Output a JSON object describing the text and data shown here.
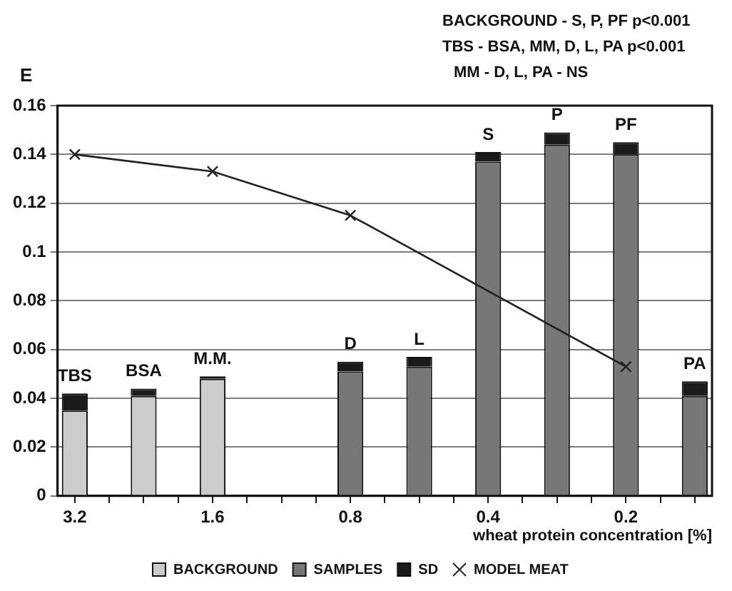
{
  "chart_data": {
    "type": "bar",
    "stacked": true,
    "ylabel": "E",
    "xlabel": "wheat protein concentration [%]",
    "annotations": [
      "BACKGROUND - S, P, PF  p<0.001",
      "TBS - BSA, MM, D, L, PA  p<0.001",
      "MM - D, L, PA - NS"
    ],
    "categories": [
      "3.2",
      null,
      null,
      null,
      "1.6",
      null,
      null,
      null,
      "0.8",
      null,
      null,
      null,
      "0.4",
      null,
      null,
      null,
      "0.2",
      null,
      null
    ],
    "ylim": [
      0,
      0.16
    ],
    "yticks": [
      0,
      0.02,
      0.04,
      0.06,
      0.08,
      0.1,
      0.12,
      0.14,
      0.16
    ],
    "grid": "y",
    "legend": "bottom",
    "marker": "cross",
    "line_style": "solid",
    "series": [
      {
        "name": "BACKGROUND",
        "color": "#cccccc",
        "values": [
          0.035,
          null,
          0.041,
          null,
          0.048,
          null,
          null,
          null,
          null,
          null,
          null,
          null,
          null,
          null,
          null,
          null,
          null,
          null,
          null
        ]
      },
      {
        "name": "SAMPLES",
        "color": "#777777",
        "values": [
          null,
          null,
          null,
          null,
          null,
          null,
          null,
          null,
          0.051,
          null,
          0.053,
          null,
          0.137,
          null,
          0.144,
          null,
          0.14,
          null,
          0.041
        ]
      },
      {
        "name": "SD",
        "color": "#1a1a1a",
        "values": [
          0.007,
          null,
          0.003,
          null,
          0.001,
          null,
          null,
          null,
          0.004,
          null,
          0.004,
          null,
          0.004,
          null,
          0.005,
          null,
          0.005,
          null,
          0.006
        ],
        "value_labels": [
          "TBS",
          null,
          "BSA",
          null,
          "M.M.",
          null,
          null,
          null,
          "D",
          null,
          "L",
          null,
          "S",
          null,
          "P",
          null,
          "PF",
          null,
          "PA"
        ]
      },
      {
        "name": "MODEL MEAT",
        "type": "line",
        "color": "#222222",
        "values": [
          0.14,
          null,
          null,
          null,
          0.133,
          null,
          null,
          null,
          0.115,
          null,
          null,
          null,
          null,
          null,
          null,
          null,
          0.053,
          null,
          null
        ]
      }
    ]
  }
}
